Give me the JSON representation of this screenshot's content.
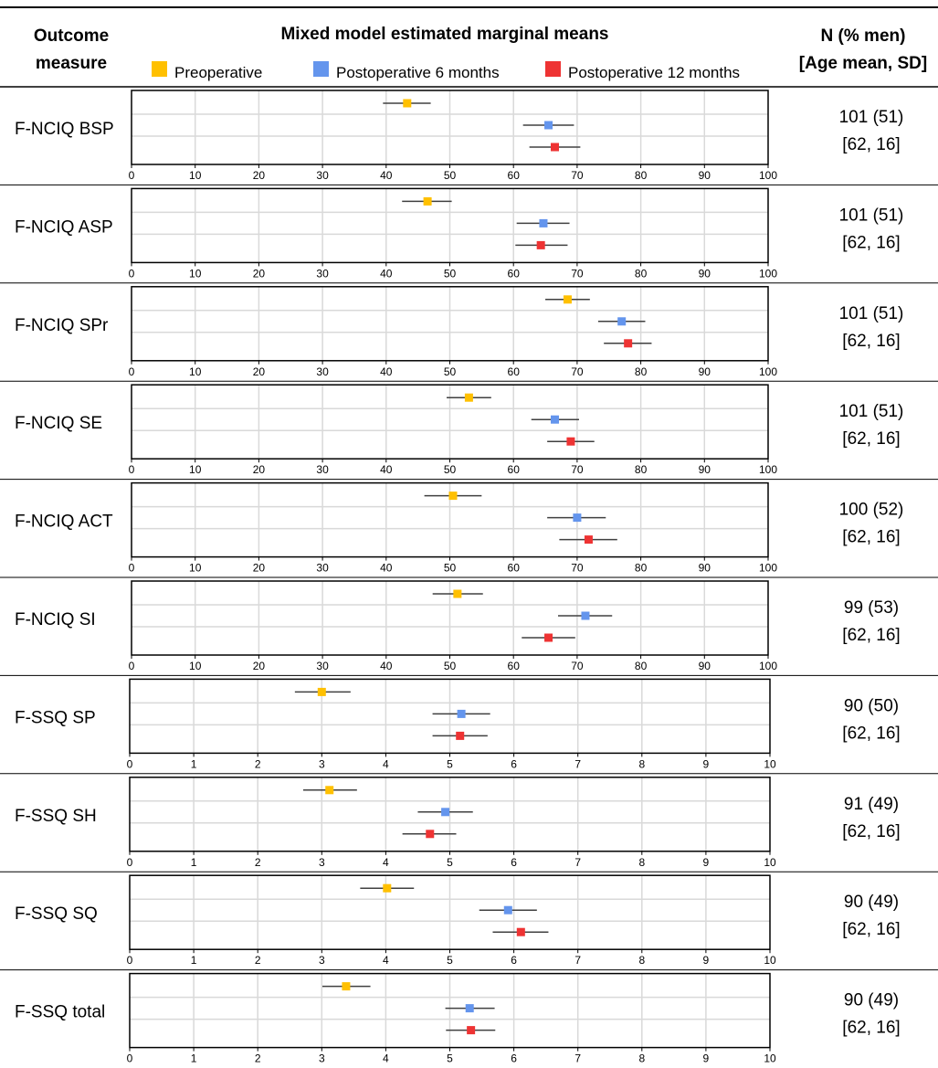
{
  "header": {
    "outcome_line1": "Outcome",
    "outcome_line2": "measure",
    "title": "Mixed model estimated marginal means",
    "n_line1": "N (% men)",
    "n_line2": "[Age mean, SD]"
  },
  "legend": [
    {
      "label": "Preoperative",
      "color": "#FFC000"
    },
    {
      "label": "Postoperative 6 months",
      "color": "#6495ED"
    },
    {
      "label": "Postoperative 12 months",
      "color": "#EE3333"
    }
  ],
  "chart_data": {
    "type": "forest",
    "grid": true,
    "series_names": [
      "Preoperative",
      "Postoperative 6 months",
      "Postoperative 12 months"
    ],
    "panels": [
      {
        "label": "F-NCIQ BSP",
        "xlim": [
          0,
          100
        ],
        "ticks": [
          0,
          10,
          20,
          30,
          40,
          50,
          60,
          70,
          80,
          90,
          100
        ],
        "n": "101 (51)",
        "age": "[62, 16]",
        "points": [
          {
            "est": 43.3,
            "low": 39.5,
            "high": 47.0
          },
          {
            "est": 65.5,
            "low": 61.5,
            "high": 69.5
          },
          {
            "est": 66.5,
            "low": 62.5,
            "high": 70.5
          }
        ]
      },
      {
        "label": "F-NCIQ ASP",
        "xlim": [
          0,
          100
        ],
        "ticks": [
          0,
          10,
          20,
          30,
          40,
          50,
          60,
          70,
          80,
          90,
          100
        ],
        "n": "101 (51)",
        "age": "[62, 16]",
        "points": [
          {
            "est": 46.5,
            "low": 42.5,
            "high": 50.3
          },
          {
            "est": 64.7,
            "low": 60.5,
            "high": 68.8
          },
          {
            "est": 64.3,
            "low": 60.3,
            "high": 68.5
          }
        ]
      },
      {
        "label": "F-NCIQ SPr",
        "xlim": [
          0,
          100
        ],
        "ticks": [
          0,
          10,
          20,
          30,
          40,
          50,
          60,
          70,
          80,
          90,
          100
        ],
        "n": "101 (51)",
        "age": "[62, 16]",
        "points": [
          {
            "est": 68.5,
            "low": 65.0,
            "high": 72.0
          },
          {
            "est": 77.0,
            "low": 73.3,
            "high": 80.7
          },
          {
            "est": 78.0,
            "low": 74.2,
            "high": 81.7
          }
        ]
      },
      {
        "label": "F-NCIQ SE",
        "xlim": [
          0,
          100
        ],
        "ticks": [
          0,
          10,
          20,
          30,
          40,
          50,
          60,
          70,
          80,
          90,
          100
        ],
        "n": "101 (51)",
        "age": "[62, 16]",
        "points": [
          {
            "est": 53.0,
            "low": 49.5,
            "high": 56.5
          },
          {
            "est": 66.5,
            "low": 62.8,
            "high": 70.3
          },
          {
            "est": 69.0,
            "low": 65.3,
            "high": 72.7
          }
        ]
      },
      {
        "label": "F-NCIQ ACT",
        "xlim": [
          0,
          100
        ],
        "ticks": [
          0,
          10,
          20,
          30,
          40,
          50,
          60,
          70,
          80,
          90,
          100
        ],
        "n": "100 (52)",
        "age": "[62, 16]",
        "points": [
          {
            "est": 50.5,
            "low": 46.0,
            "high": 55.0
          },
          {
            "est": 70.0,
            "low": 65.3,
            "high": 74.5
          },
          {
            "est": 71.8,
            "low": 67.2,
            "high": 76.3
          }
        ]
      },
      {
        "label": "F-NCIQ SI",
        "xlim": [
          0,
          100
        ],
        "ticks": [
          0,
          10,
          20,
          30,
          40,
          50,
          60,
          70,
          80,
          90,
          100
        ],
        "n": "99 (53)",
        "age": "[62, 16]",
        "points": [
          {
            "est": 51.2,
            "low": 47.3,
            "high": 55.2
          },
          {
            "est": 71.3,
            "low": 67.0,
            "high": 75.5
          },
          {
            "est": 65.5,
            "low": 61.3,
            "high": 69.7
          }
        ]
      },
      {
        "label": "F-SSQ SP",
        "xlim": [
          0,
          10
        ],
        "ticks": [
          0,
          1,
          2,
          3,
          4,
          5,
          6,
          7,
          8,
          9,
          10
        ],
        "n": "90 (50)",
        "age": "[62, 16]",
        "points": [
          {
            "est": 3.0,
            "low": 2.58,
            "high": 3.45
          },
          {
            "est": 5.18,
            "low": 4.73,
            "high": 5.63
          },
          {
            "est": 5.16,
            "low": 4.73,
            "high": 5.59
          }
        ]
      },
      {
        "label": "F-SSQ SH",
        "xlim": [
          0,
          10
        ],
        "ticks": [
          0,
          1,
          2,
          3,
          4,
          5,
          6,
          7,
          8,
          9,
          10
        ],
        "n": "91 (49)",
        "age": "[62, 16]",
        "points": [
          {
            "est": 3.12,
            "low": 2.71,
            "high": 3.55
          },
          {
            "est": 4.93,
            "low": 4.5,
            "high": 5.36
          },
          {
            "est": 4.69,
            "low": 4.26,
            "high": 5.1
          }
        ]
      },
      {
        "label": "F-SSQ SQ",
        "xlim": [
          0,
          10
        ],
        "ticks": [
          0,
          1,
          2,
          3,
          4,
          5,
          6,
          7,
          8,
          9,
          10
        ],
        "n": "90 (49)",
        "age": "[62, 16]",
        "points": [
          {
            "est": 4.02,
            "low": 3.6,
            "high": 4.44
          },
          {
            "est": 5.91,
            "low": 5.46,
            "high": 6.36
          },
          {
            "est": 6.11,
            "low": 5.67,
            "high": 6.54
          }
        ]
      },
      {
        "label": "F-SSQ total",
        "xlim": [
          0,
          10
        ],
        "ticks": [
          0,
          1,
          2,
          3,
          4,
          5,
          6,
          7,
          8,
          9,
          10
        ],
        "n": "90 (49)",
        "age": "[62, 16]",
        "points": [
          {
            "est": 3.38,
            "low": 3.01,
            "high": 3.76
          },
          {
            "est": 5.31,
            "low": 4.93,
            "high": 5.7
          },
          {
            "est": 5.33,
            "low": 4.94,
            "high": 5.71
          }
        ]
      }
    ]
  }
}
